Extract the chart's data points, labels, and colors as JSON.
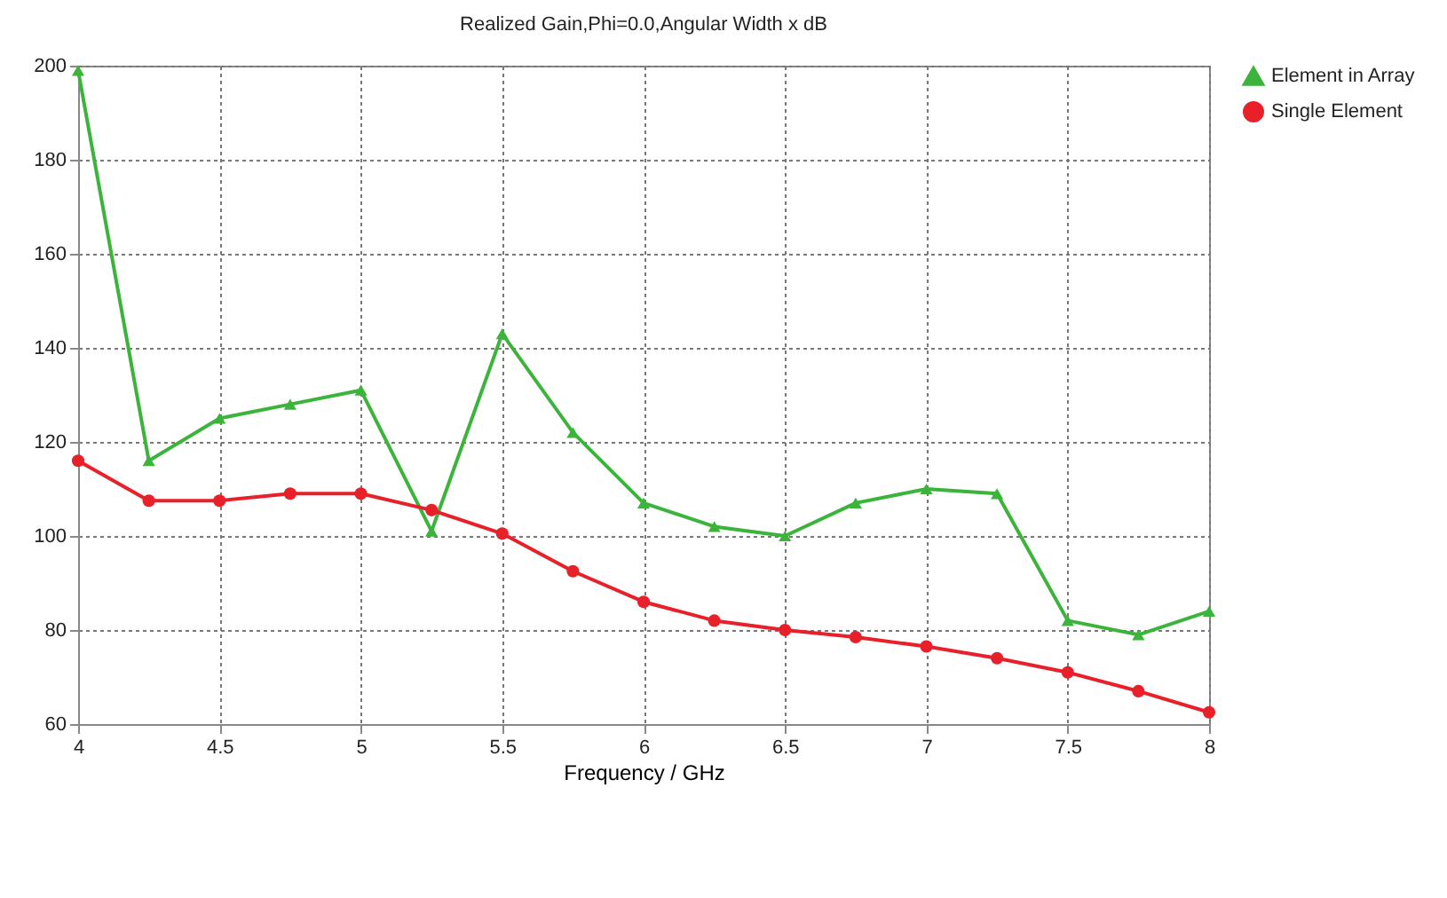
{
  "chart_data": {
    "type": "line",
    "title": "Realized Gain,Phi=0.0,Angular Width x dB",
    "xlabel": "Frequency / GHz",
    "x": [
      4,
      4.25,
      4.5,
      4.75,
      5,
      5.25,
      5.5,
      5.75,
      6,
      6.25,
      6.5,
      6.75,
      7,
      7.25,
      7.5,
      7.75,
      8
    ],
    "series": [
      {
        "name": "Element in Array",
        "color": "#3cb43c",
        "marker": "triangle",
        "values": [
          199,
          116,
          125,
          128,
          131,
          101,
          143,
          122,
          107,
          102,
          100,
          107,
          110,
          109,
          82,
          79,
          84
        ]
      },
      {
        "name": "Single Element",
        "color": "#e8202a",
        "marker": "circle",
        "values": [
          116,
          107.5,
          107.5,
          109,
          109,
          105.5,
          100.5,
          92.5,
          86,
          82,
          80,
          78.5,
          76.5,
          74,
          71,
          67,
          62.5
        ]
      }
    ],
    "xlim": [
      4,
      8
    ],
    "xticks": [
      4,
      4.5,
      5,
      5.5,
      6,
      6.5,
      7,
      7.5,
      8
    ],
    "ylim": [
      60,
      200
    ],
    "yticks": [
      60,
      80,
      100,
      120,
      140,
      160,
      180,
      200
    ],
    "grid": true,
    "legend": "top right"
  }
}
